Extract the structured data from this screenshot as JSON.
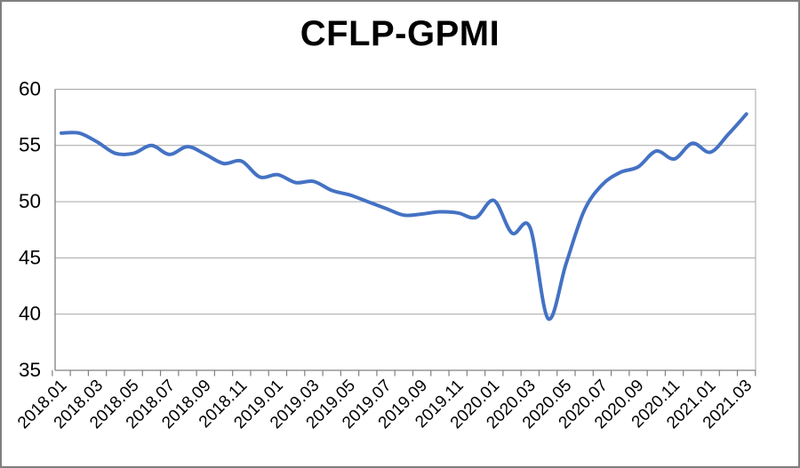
{
  "chart_data": {
    "type": "line",
    "title": "CFLP-GPMI",
    "series_name": "CFLP-GPMI",
    "x": [
      "2018.01",
      "2018.02",
      "2018.03",
      "2018.04",
      "2018.05",
      "2018.06",
      "2018.07",
      "2018.08",
      "2018.09",
      "2018.10",
      "2018.11",
      "2018.12",
      "2019.01",
      "2019.02",
      "2019.03",
      "2019.04",
      "2019.05",
      "2019.06",
      "2019.07",
      "2019.08",
      "2019.09",
      "2019.10",
      "2019.11",
      "2019.12",
      "2020.01",
      "2020.02",
      "2020.03",
      "2020.04",
      "2020.05",
      "2020.06",
      "2020.07",
      "2020.08",
      "2020.09",
      "2020.10",
      "2020.11",
      "2020.12",
      "2021.01",
      "2021.02",
      "2021.03"
    ],
    "values": [
      56.1,
      56.1,
      55.3,
      54.3,
      54.3,
      55.0,
      54.2,
      54.9,
      54.2,
      53.4,
      53.6,
      52.2,
      52.4,
      51.7,
      51.8,
      51.0,
      50.6,
      50.0,
      49.4,
      48.8,
      48.9,
      49.1,
      49.0,
      48.6,
      50.1,
      47.2,
      47.7,
      39.6,
      44.5,
      49.2,
      51.5,
      52.6,
      53.1,
      54.5,
      53.8,
      55.2,
      54.4,
      56.0,
      57.8
    ],
    "x_tick_labels": [
      "2018.01",
      "2018.03",
      "2018.05",
      "2018.07",
      "2018.09",
      "2018.11",
      "2019.01",
      "2019.03",
      "2019.05",
      "2019.07",
      "2019.09",
      "2019.11",
      "2020.01",
      "2020.03",
      "2020.05",
      "2020.07",
      "2020.09",
      "2020.11",
      "2021.01",
      "2021.03"
    ],
    "x_label_every": 2,
    "ylim": [
      35,
      60
    ],
    "yticks": [
      60,
      55,
      50,
      45,
      40,
      35
    ],
    "grid": true,
    "legend_position": "none",
    "smoothed_line": true,
    "line_color": "#4472C4",
    "grid_color": "#A6A6A6",
    "axis_color": "#808080",
    "text_color": "#000000",
    "background_color": "#FFFFFF"
  }
}
